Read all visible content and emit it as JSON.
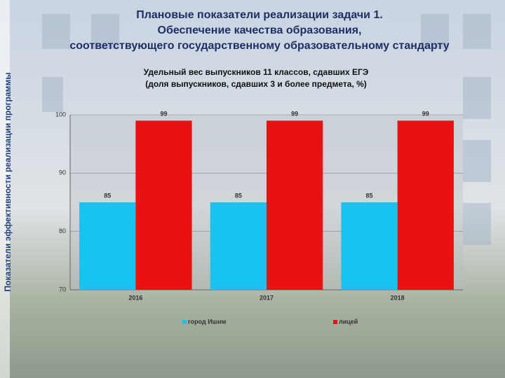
{
  "slide": {
    "side_label": "Показатели эффективности реализации программы",
    "title": [
      "Плановые показатели реализации задачи 1.",
      "Обеспечение качества образования,",
      "соответствующего государственному образовательному стандарту"
    ]
  },
  "chart_data": {
    "type": "bar",
    "title": [
      "Удельный вес выпускников 11 классов, сдавших ЕГЭ",
      "(доля выпускников, сдавших 3 и более предмета, %)"
    ],
    "categories": [
      "2016",
      "2017",
      "2018"
    ],
    "series": [
      {
        "name": "город Ишим",
        "color": "#19c3f0",
        "values": [
          85,
          85,
          85
        ]
      },
      {
        "name": "лицей",
        "color": "#e81212",
        "values": [
          99,
          99,
          99
        ]
      }
    ],
    "ylim": [
      70,
      100
    ],
    "yticks": [
      70,
      80,
      90,
      100
    ],
    "grid": true,
    "legend": "bottom"
  }
}
